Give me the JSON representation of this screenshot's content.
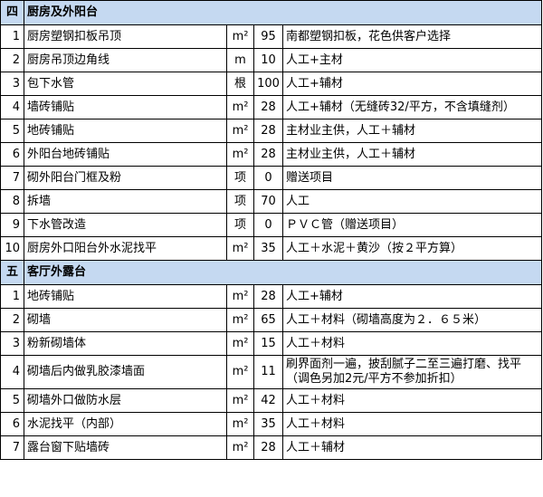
{
  "sections": [
    {
      "number": "四",
      "title": "厨房及外阳台",
      "rows": [
        [
          "1",
          "厨房塑钢扣板吊顶",
          "m²",
          "95",
          "南都塑钢扣板，花色供客户选择"
        ],
        [
          "2",
          "厨房吊顶边角线",
          "m",
          "10",
          "人工+主材"
        ],
        [
          "3",
          "包下水管",
          "根",
          "100",
          "人工+辅材"
        ],
        [
          "4",
          "墙砖铺贴",
          "m²",
          "28",
          "人工+辅材（无缝砖32/平方，不含填缝剂）"
        ],
        [
          "5",
          "地砖铺贴",
          "m²",
          "28",
          "主材业主供，人工＋辅材"
        ],
        [
          "6",
          "外阳台地砖铺贴",
          "m²",
          "28",
          "主材业主供，人工＋辅材"
        ],
        [
          "7",
          "砌外阳台门框及粉",
          "项",
          "0",
          "赠送项目"
        ],
        [
          "8",
          "拆墙",
          "项",
          "70",
          "人工"
        ],
        [
          "9",
          "下水管改造",
          "项",
          "0",
          "ＰＶＣ管（赠送项目）"
        ],
        [
          "10",
          "厨房外口阳台外水泥找平",
          "m²",
          "35",
          "人工＋水泥＋黄沙（按２平方算）"
        ]
      ]
    },
    {
      "number": "五",
      "title": "客厅外露台",
      "rows": [
        [
          "1",
          "地砖铺贴",
          "m²",
          "28",
          "人工+辅材"
        ],
        [
          "2",
          "砌墙",
          "m²",
          "65",
          "人工＋材料（砌墙高度为２．６５米）"
        ],
        [
          "3",
          "粉新砌墙体",
          "m²",
          "15",
          "人工＋材料"
        ],
        [
          "4",
          "砌墙后内做乳胶漆墙面",
          "m²",
          "11",
          "刷界面剂一遍，披刮腻子二至三遍打磨、找平（调色另加2元/平方不参加折扣）"
        ],
        [
          "5",
          "砌墙外口做防水层",
          "m²",
          "42",
          "人工＋材料"
        ],
        [
          "6",
          "水泥找平（内部）",
          "m²",
          "35",
          "人工＋材料"
        ],
        [
          "7",
          "露台窗下贴墙砖",
          "m²",
          "28",
          "人工＋辅材"
        ]
      ]
    }
  ]
}
